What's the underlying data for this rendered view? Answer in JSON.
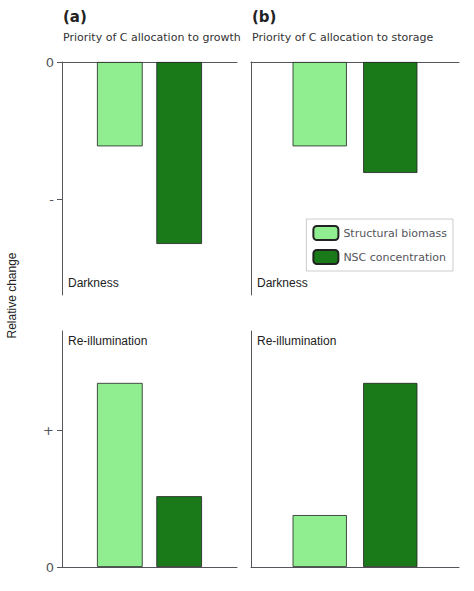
{
  "chart_data": [
    {
      "type": "bar",
      "title": "(a)",
      "subtitle": "Priority of C allocation to growth",
      "ylabel": "Relative change",
      "annotations": [
        "Darkness"
      ],
      "categories": [
        null
      ],
      "series": [
        {
          "name": "Structural biomass",
          "color": "#90EE90",
          "values": [
            0.38
          ]
        },
        {
          "name": "NSC concentration",
          "color": "#1a7a1a",
          "values": [
            0.82
          ]
        }
      ],
      "ylim": [
        1.05,
        0
      ],
      "yticks": [
        0,
        {
          "value": 0.62,
          "label": "-"
        }
      ],
      "tick_labels": "y",
      "grid": false
    },
    {
      "type": "bar",
      "title": "(b)",
      "subtitle": "Priority of C allocation to storage",
      "annotations": [
        "Darkness"
      ],
      "categories": [
        null
      ],
      "series": [
        {
          "name": "Structural biomass",
          "color": "#90EE90",
          "values": [
            0.38
          ]
        },
        {
          "name": "NSC concentration",
          "color": "#1a7a1a",
          "values": [
            0.5
          ]
        }
      ],
      "ylim": [
        1.05,
        0
      ],
      "tick_labels": false,
      "grid": false,
      "legend": "lower right"
    },
    {
      "type": "bar",
      "annotations": [
        "Re-illumination"
      ],
      "categories": [
        null
      ],
      "series": [
        {
          "name": "Structural biomass",
          "color": "#90EE90",
          "values": [
            0.78
          ]
        },
        {
          "name": "NSC concentration",
          "color": "#1a7a1a",
          "values": [
            0.3
          ]
        }
      ],
      "ylim": [
        0,
        1.0
      ],
      "yticks": [
        0,
        {
          "value": 0.58,
          "label": "+"
        }
      ],
      "tick_labels": "y",
      "grid": false
    },
    {
      "type": "bar",
      "annotations": [
        "Re-illumination"
      ],
      "categories": [
        null
      ],
      "series": [
        {
          "name": "Structural biomass",
          "color": "#90EE90",
          "values": [
            0.22
          ]
        },
        {
          "name": "NSC concentration",
          "color": "#1a7a1a",
          "values": [
            0.78
          ]
        }
      ],
      "ylim": [
        0,
        1.0
      ],
      "tick_labels": false,
      "grid": false
    }
  ]
}
